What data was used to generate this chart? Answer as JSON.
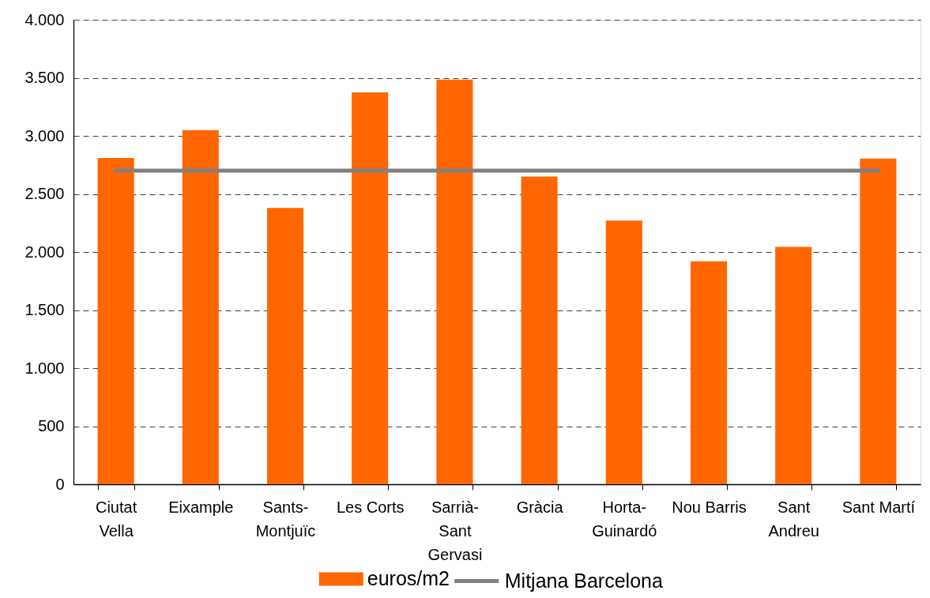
{
  "chart_data": {
    "type": "bar",
    "categories": [
      "Ciutat Vella",
      "Eixample",
      "Sants-Montjuïc",
      "Les Corts",
      "Sarrià-Sant Gervasi",
      "Gràcia",
      "Horta-Guinardó",
      "Nou Barris",
      "Sant Andreu",
      "Sant Martí"
    ],
    "series": [
      {
        "name": "euros/m2",
        "color": "#ff6600",
        "values": [
          2810,
          3050,
          2380,
          3375,
          3485,
          2650,
          2270,
          1920,
          2045,
          2805
        ]
      },
      {
        "name": "Mitjana Barcelona",
        "type": "line",
        "color": "#808080",
        "values": [
          2700,
          2700,
          2700,
          2700,
          2700,
          2700,
          2700,
          2700,
          2700,
          2700
        ]
      }
    ],
    "ylim": [
      0,
      4000
    ],
    "yticks": [
      0,
      500,
      {
        "value": 1000,
        "label": "1.000"
      },
      {
        "value": 1500,
        "label": "1.500"
      },
      {
        "value": 2000,
        "label": "2.000"
      },
      {
        "value": 2500,
        "label": "2.500"
      },
      {
        "value": 3000,
        "label": "3.000"
      },
      {
        "value": 3500,
        "label": "3.500"
      },
      {
        "value": 4000,
        "label": "4.000"
      }
    ],
    "grid": "y",
    "legend": "bottom",
    "line_style": "solid"
  }
}
